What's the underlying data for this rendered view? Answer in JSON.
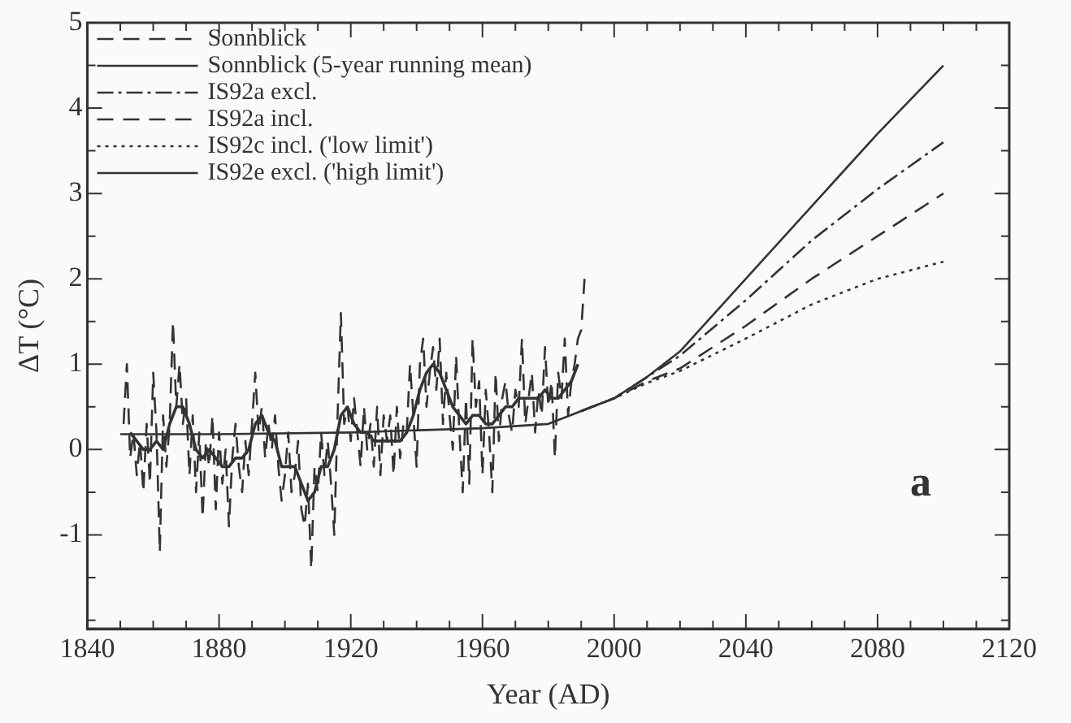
{
  "chart_data": {
    "type": "line",
    "xlabel": "Year (AD)",
    "ylabel": "ΔT (°C)",
    "xlim": [
      1840,
      2120
    ],
    "xticks": [
      1840,
      {
        "value": 1850,
        "label": null
      },
      {
        "value": 1860,
        "label": null
      },
      {
        "value": 1870,
        "label": null
      },
      1880,
      {
        "value": 1890,
        "label": null
      },
      {
        "value": 1900,
        "label": null
      },
      {
        "value": 1910,
        "label": null
      },
      1920,
      {
        "value": 1930,
        "label": null
      },
      {
        "value": 1940,
        "label": null
      },
      {
        "value": 1950,
        "label": null
      },
      1960,
      {
        "value": 1970,
        "label": null
      },
      {
        "value": 1980,
        "label": null
      },
      {
        "value": 1990,
        "label": null
      },
      2000,
      {
        "value": 2010,
        "label": null
      },
      {
        "value": 2020,
        "label": null
      },
      {
        "value": 2030,
        "label": null
      },
      2040,
      {
        "value": 2050,
        "label": null
      },
      {
        "value": 2060,
        "label": null
      },
      {
        "value": 2070,
        "label": null
      },
      2080,
      {
        "value": 2090,
        "label": null
      },
      {
        "value": 2100,
        "label": null
      },
      {
        "value": 2110,
        "label": null
      },
      2120
    ],
    "ylim": [
      -2.1,
      5
    ],
    "yticks": [
      {
        "value": -2,
        "label": null
      },
      {
        "value": -1.5,
        "label": null
      },
      -1,
      {
        "value": -0.5,
        "label": null
      },
      0,
      {
        "value": 0.5,
        "label": null
      },
      1,
      {
        "value": 1.5,
        "label": null
      },
      2,
      {
        "value": 2.5,
        "label": null
      },
      3,
      {
        "value": 3.5,
        "label": null
      },
      4,
      {
        "value": 4.5,
        "label": null
      },
      5
    ],
    "grid": false,
    "legend": "top left",
    "marker": "none",
    "annotations": [
      "a"
    ],
    "series": [
      {
        "name": "Sonnblick",
        "color": "#333333",
        "line_style": "dashed",
        "x": [
          1851,
          1852,
          1853,
          1854,
          1855,
          1856,
          1857,
          1858,
          1859,
          1860,
          1861,
          1862,
          1863,
          1864,
          1865,
          1866,
          1867,
          1868,
          1869,
          1870,
          1871,
          1872,
          1873,
          1874,
          1875,
          1876,
          1877,
          1878,
          1879,
          1880,
          1881,
          1882,
          1883,
          1884,
          1885,
          1886,
          1887,
          1888,
          1889,
          1890,
          1891,
          1892,
          1893,
          1894,
          1895,
          1896,
          1897,
          1898,
          1899,
          1900,
          1901,
          1902,
          1903,
          1904,
          1905,
          1906,
          1907,
          1908,
          1909,
          1910,
          1911,
          1912,
          1913,
          1914,
          1915,
          1916,
          1917,
          1918,
          1919,
          1920,
          1921,
          1922,
          1923,
          1924,
          1925,
          1926,
          1927,
          1928,
          1929,
          1930,
          1931,
          1932,
          1933,
          1934,
          1935,
          1936,
          1937,
          1938,
          1939,
          1940,
          1941,
          1942,
          1943,
          1944,
          1945,
          1946,
          1947,
          1948,
          1949,
          1950,
          1951,
          1952,
          1953,
          1954,
          1955,
          1956,
          1957,
          1958,
          1959,
          1960,
          1961,
          1962,
          1963,
          1964,
          1965,
          1966,
          1967,
          1968,
          1969,
          1970,
          1971,
          1972,
          1973,
          1974,
          1975,
          1976,
          1977,
          1978,
          1979,
          1980,
          1981,
          1982,
          1983,
          1984,
          1985,
          1986,
          1987,
          1988,
          1989,
          1990,
          1991
        ],
        "values": [
          0.3,
          1.0,
          -0.1,
          0.2,
          -0.3,
          0.1,
          -0.5,
          0.3,
          -0.4,
          0.9,
          0.2,
          -1.2,
          0.4,
          -0.2,
          0.3,
          1.5,
          0.5,
          1.0,
          0.3,
          0.6,
          -0.3,
          0.4,
          -0.5,
          0.2,
          -0.8,
          0.1,
          -0.2,
          0.4,
          -0.7,
          0.2,
          -0.4,
          0.0,
          -0.9,
          -0.1,
          0.3,
          -0.2,
          -0.5,
          0.1,
          -0.3,
          0.3,
          0.9,
          0.2,
          0.5,
          -0.1,
          0.3,
          0.0,
          0.4,
          -0.2,
          -0.6,
          -0.3,
          0.2,
          -0.5,
          -0.3,
          0.1,
          -0.7,
          -0.9,
          -0.4,
          -1.4,
          -0.2,
          -0.5,
          0.2,
          -0.3,
          0.1,
          -0.4,
          -1.0,
          0.4,
          1.6,
          0.3,
          0.5,
          0.1,
          0.6,
          0.2,
          -0.2,
          0.5,
          0.0,
          0.3,
          -0.2,
          0.5,
          -0.3,
          0.4,
          0.1,
          0.4,
          -0.3,
          0.5,
          -0.1,
          0.3,
          0.2,
          1.0,
          0.4,
          -0.2,
          1.0,
          1.3,
          0.5,
          0.9,
          1.2,
          0.7,
          1.3,
          0.3,
          0.9,
          0.4,
          0.0,
          1.1,
          0.2,
          -0.5,
          0.6,
          -0.4,
          1.3,
          0.5,
          0.8,
          -0.3,
          0.7,
          0.2,
          -0.5,
          0.9,
          0.1,
          0.6,
          0.8,
          0.4,
          0.2,
          0.7,
          0.5,
          1.3,
          0.3,
          0.6,
          0.9,
          0.2,
          0.7,
          0.4,
          1.2,
          0.5,
          0.8,
          -0.1,
          0.9,
          0.6,
          1.3,
          0.4,
          0.8,
          1.0,
          1.3,
          1.4,
          2.0
        ]
      },
      {
        "name": "Sonnblick (5-year running mean)",
        "color": "#333333",
        "line_style": "solid",
        "x": [
          1853,
          1855,
          1857,
          1859,
          1861,
          1863,
          1865,
          1867,
          1869,
          1871,
          1873,
          1875,
          1877,
          1879,
          1881,
          1883,
          1885,
          1887,
          1889,
          1891,
          1893,
          1895,
          1897,
          1899,
          1901,
          1903,
          1905,
          1907,
          1909,
          1911,
          1913,
          1915,
          1917,
          1919,
          1921,
          1923,
          1925,
          1927,
          1929,
          1931,
          1933,
          1935,
          1937,
          1939,
          1941,
          1943,
          1945,
          1947,
          1949,
          1951,
          1953,
          1955,
          1957,
          1959,
          1961,
          1963,
          1965,
          1967,
          1969,
          1971,
          1973,
          1975,
          1977,
          1979,
          1981,
          1983,
          1985,
          1987,
          1989
        ],
        "values": [
          0.2,
          0.1,
          0.0,
          0.0,
          0.1,
          0.0,
          0.3,
          0.5,
          0.5,
          0.3,
          0.0,
          -0.1,
          0.0,
          -0.1,
          -0.2,
          -0.2,
          -0.1,
          -0.1,
          0.0,
          0.3,
          0.4,
          0.2,
          0.1,
          -0.2,
          -0.2,
          -0.2,
          -0.4,
          -0.6,
          -0.5,
          -0.2,
          -0.2,
          0.0,
          0.4,
          0.5,
          0.3,
          0.2,
          0.2,
          0.1,
          0.1,
          0.1,
          0.1,
          0.1,
          0.2,
          0.4,
          0.7,
          0.9,
          1.0,
          0.9,
          0.7,
          0.5,
          0.4,
          0.3,
          0.4,
          0.4,
          0.3,
          0.3,
          0.4,
          0.5,
          0.5,
          0.6,
          0.6,
          0.6,
          0.6,
          0.7,
          0.6,
          0.6,
          0.7,
          0.8,
          1.0
        ]
      },
      {
        "name": "IS92a excl.",
        "color": "#333333",
        "line_style": "dashdot",
        "x": [
          1990,
          2000,
          2010,
          2020,
          2040,
          2060,
          2080,
          2100
        ],
        "values": [
          0.45,
          0.6,
          0.85,
          1.1,
          1.75,
          2.45,
          3.05,
          3.6
        ]
      },
      {
        "name": "IS92a incl.",
        "color": "#333333",
        "line_style": "dashed",
        "x": [
          1990,
          2000,
          2010,
          2020,
          2040,
          2060,
          2080,
          2100
        ],
        "values": [
          0.45,
          0.6,
          0.8,
          0.95,
          1.45,
          2.0,
          2.5,
          3.0
        ]
      },
      {
        "name": "IS92c incl. ('low limit')",
        "color": "#333333",
        "line_style": "dotted",
        "x": [
          1990,
          2000,
          2010,
          2020,
          2040,
          2060,
          2080,
          2100
        ],
        "values": [
          0.45,
          0.6,
          0.78,
          0.92,
          1.3,
          1.7,
          2.0,
          2.2
        ]
      },
      {
        "name": "IS92e excl. ('high limit')",
        "color": "#333333",
        "line_style": "solid",
        "x": [
          1850,
          1880,
          1920,
          1960,
          1980,
          1990,
          2000,
          2010,
          2020,
          2040,
          2060,
          2080,
          2100
        ],
        "values": [
          0.18,
          0.18,
          0.2,
          0.25,
          0.3,
          0.45,
          0.6,
          0.85,
          1.15,
          2.0,
          2.85,
          3.7,
          4.5
        ]
      }
    ]
  }
}
